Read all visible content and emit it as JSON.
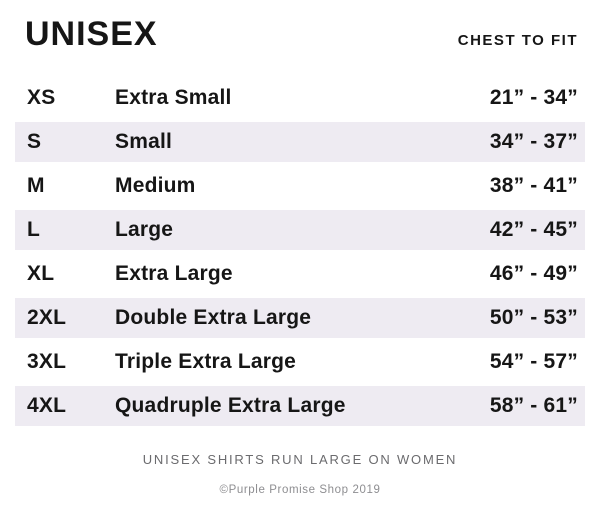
{
  "header": {
    "title": "UNISEX",
    "column_header": "CHEST TO FIT"
  },
  "table": {
    "rows": [
      {
        "code": "XS",
        "name": "Extra Small",
        "range": "21” - 34”"
      },
      {
        "code": "S",
        "name": "Small",
        "range": "34” - 37”"
      },
      {
        "code": "M",
        "name": "Medium",
        "range": "38” - 41”"
      },
      {
        "code": "L",
        "name": "Large",
        "range": "42” - 45”"
      },
      {
        "code": "XL",
        "name": "Extra Large",
        "range": "46” - 49”"
      },
      {
        "code": "2XL",
        "name": "Double Extra Large",
        "range": "50” - 53”"
      },
      {
        "code": "3XL",
        "name": "Triple Extra Large",
        "range": "54” - 57”"
      },
      {
        "code": "4XL",
        "name": "Quadruple Extra Large",
        "range": "58” - 61”"
      }
    ]
  },
  "footer": {
    "note": "UNISEX SHIRTS RUN LARGE ON WOMEN",
    "copyright": "©Purple Promise Shop 2019"
  },
  "colors": {
    "text": "#161616",
    "stripe": "#EEEBF2",
    "note": "#6B6B6E",
    "copyright": "#8E8E91"
  }
}
